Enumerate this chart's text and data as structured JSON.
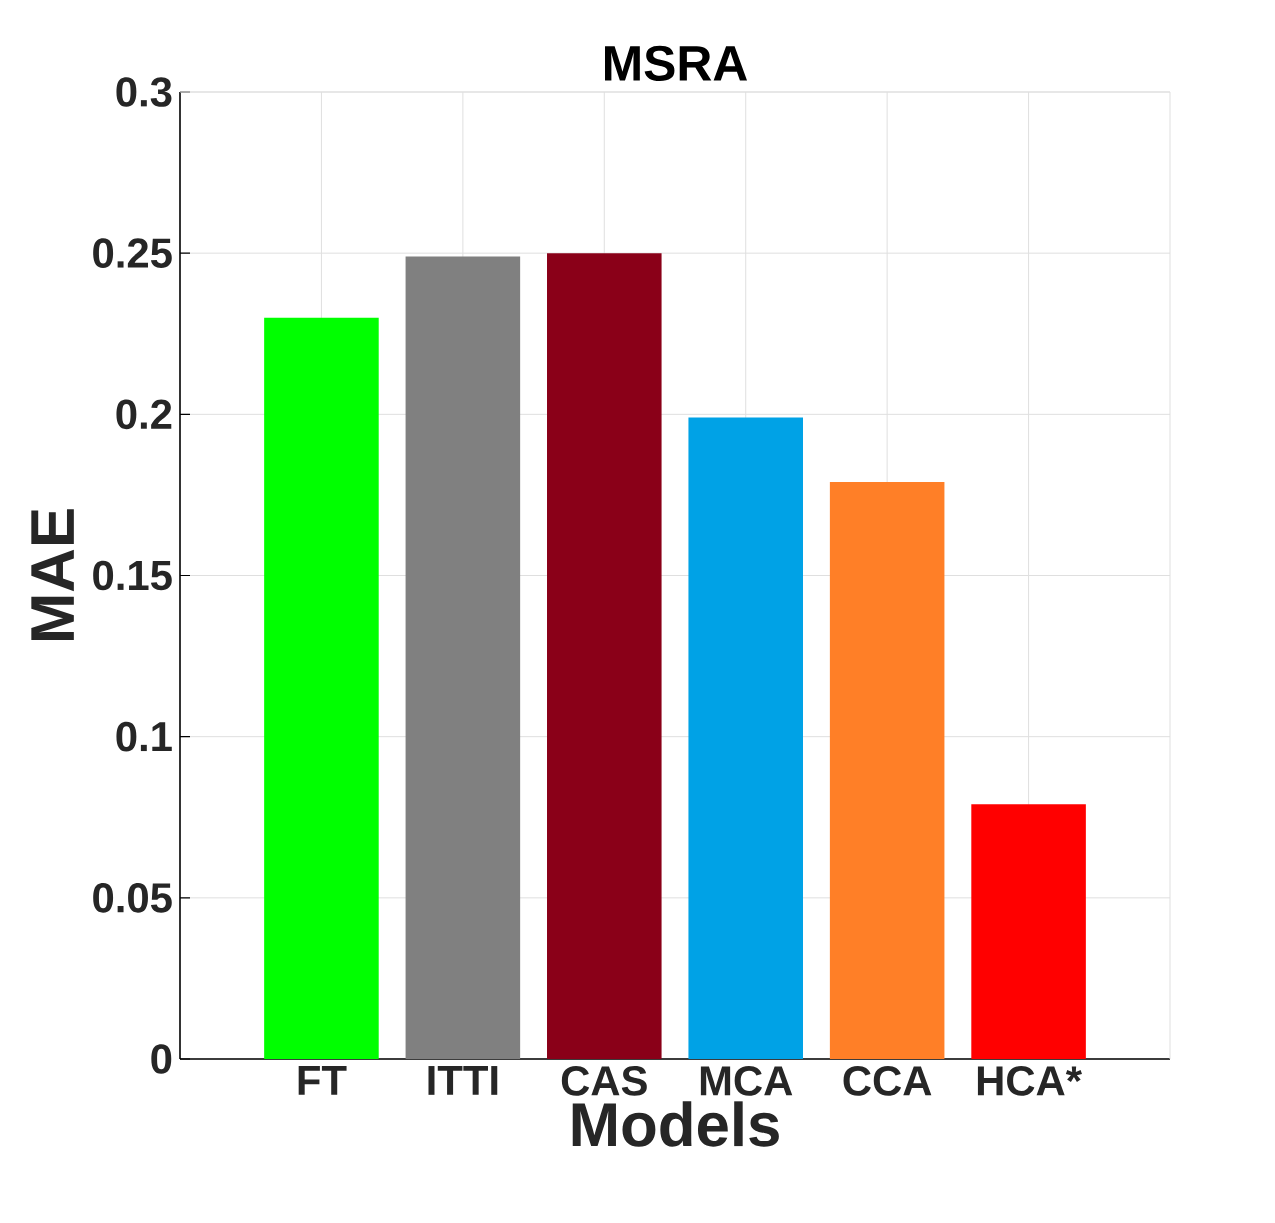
{
  "chart_data": {
    "type": "bar",
    "title": "MSRA",
    "xlabel": "Models",
    "ylabel": "MAE",
    "categories": [
      "FT",
      "ITTI",
      "CAS",
      "MCA",
      "CCA",
      "HCA*"
    ],
    "values": [
      0.23,
      0.249,
      0.25,
      0.199,
      0.179,
      0.079
    ],
    "colors": [
      "#00ff00",
      "#808080",
      "#8a0018",
      "#00a2e6",
      "#ff7f27",
      "#ff0000"
    ],
    "ylim": [
      0,
      0.3
    ],
    "yticks": [
      0,
      0.05,
      0.1,
      0.15,
      0.2,
      0.25,
      0.3
    ],
    "grid": true
  }
}
